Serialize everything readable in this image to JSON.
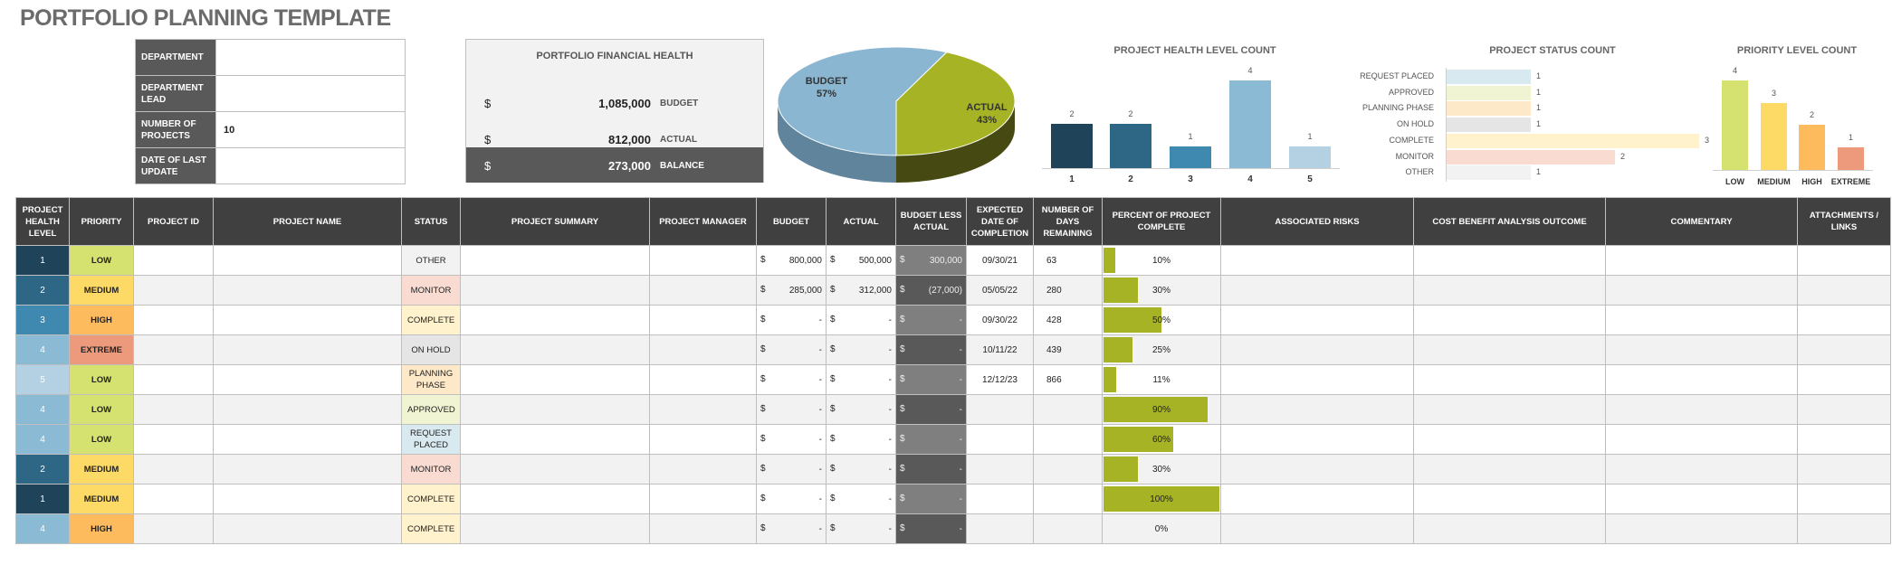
{
  "title": "PORTFOLIO PLANNING TEMPLATE",
  "info": [
    {
      "label": "DEPARTMENT",
      "value": ""
    },
    {
      "label": "DEPARTMENT LEAD",
      "value": ""
    },
    {
      "label": "NUMBER OF PROJECTS",
      "value": "10"
    },
    {
      "label": "DATE OF LAST UPDATE",
      "value": ""
    }
  ],
  "financial": {
    "title": "PORTFOLIO FINANCIAL HEALTH",
    "currency": "$",
    "rows": [
      {
        "value": "1,085,000",
        "label": "BUDGET"
      },
      {
        "value": "812,000",
        "label": "ACTUAL"
      },
      {
        "value": "273,000",
        "label": "BALANCE"
      }
    ]
  },
  "chart_data": [
    {
      "type": "pie",
      "slices": [
        {
          "name": "BUDGET",
          "pct_label": "57%",
          "value": 57
        },
        {
          "name": "ACTUAL",
          "pct_label": "43%",
          "value": 43
        }
      ],
      "colors": [
        "#8ab6d1",
        "#a5b324"
      ]
    },
    {
      "type": "bar",
      "title": "PROJECT HEALTH LEVEL COUNT",
      "categories": [
        "1",
        "2",
        "3",
        "4",
        "5"
      ],
      "values": [
        2,
        2,
        1,
        4,
        1
      ],
      "colors": [
        "#1f4358",
        "#2e6685",
        "#3f88b0",
        "#8bbad5",
        "#b3d1e2"
      ]
    },
    {
      "type": "bar",
      "orientation": "horizontal",
      "title": "PROJECT STATUS COUNT",
      "categories": [
        "REQUEST PLACED",
        "APPROVED",
        "PLANNING PHASE",
        "ON HOLD",
        "COMPLETE",
        "MONITOR",
        "OTHER"
      ],
      "values": [
        1,
        1,
        1,
        1,
        3,
        2,
        1
      ],
      "colors": [
        "#d9e9f0",
        "#f0f4d2",
        "#fde9c8",
        "#e5e5e5",
        "#fff2cc",
        "#fadbd2",
        "#f2f2f2"
      ]
    },
    {
      "type": "bar",
      "title": "PRIORITY LEVEL COUNT",
      "categories": [
        "LOW",
        "MEDIUM",
        "HIGH",
        "EXTREME"
      ],
      "values": [
        4,
        3,
        2,
        1
      ],
      "colors": [
        "#d5e26f",
        "#fdd966",
        "#fdbb5e",
        "#ec9a7b"
      ]
    }
  ],
  "table": {
    "headers": [
      "PROJECT HEALTH LEVEL",
      "PRIORITY",
      "PROJECT ID",
      "PROJECT NAME",
      "STATUS",
      "PROJECT SUMMARY",
      "PROJECT MANAGER",
      "BUDGET",
      "ACTUAL",
      "BUDGET LESS ACTUAL",
      "EXPECTED DATE OF COMPLETION",
      "NUMBER OF DAYS REMAINING",
      "PERCENT OF PROJECT COMPLETE",
      "ASSOCIATED RISKS",
      "COST BENEFIT ANALYSIS OUTCOME",
      "COMMENTARY",
      "ATTACHMENTS / LINKS"
    ],
    "currency": "$",
    "health_colors": {
      "1": "#1f4358",
      "2": "#2e6685",
      "3": "#3f88b0",
      "4": "#8bbad5",
      "5": "#b3d1e2"
    },
    "priority_colors": {
      "LOW": "#d5e26f",
      "MEDIUM": "#fdd966",
      "HIGH": "#fdbb5e",
      "EXTREME": "#ec9a7b"
    },
    "status_colors": {
      "OTHER": "#f2f2f2",
      "MONITOR": "#fadbd2",
      "COMPLETE": "#fff2cc",
      "ON HOLD": "#e5e5e5",
      "PLANNING PHASE": "#fde9c8",
      "APPROVED": "#f0f4d2",
      "REQUEST PLACED": "#d9e9f0"
    },
    "progress_color": "#a5b324",
    "rows": [
      {
        "health": "1",
        "priority": "LOW",
        "id": "",
        "name": "",
        "status": "OTHER",
        "summary": "",
        "manager": "",
        "budget": "800,000",
        "actual": "500,000",
        "diff": "300,000",
        "date": "09/30/21",
        "days": "63",
        "pct": 10,
        "pct_label": "10%",
        "risks": "",
        "cba": "",
        "commentary": "",
        "links": ""
      },
      {
        "health": "2",
        "priority": "MEDIUM",
        "id": "",
        "name": "",
        "status": "MONITOR",
        "summary": "",
        "manager": "",
        "budget": "285,000",
        "actual": "312,000",
        "diff": "(27,000)",
        "date": "05/05/22",
        "days": "280",
        "pct": 30,
        "pct_label": "30%",
        "risks": "",
        "cba": "",
        "commentary": "",
        "links": ""
      },
      {
        "health": "3",
        "priority": "HIGH",
        "id": "",
        "name": "",
        "status": "COMPLETE",
        "summary": "",
        "manager": "",
        "budget": "-",
        "actual": "-",
        "diff": "-",
        "date": "09/30/22",
        "days": "428",
        "pct": 50,
        "pct_label": "50%",
        "risks": "",
        "cba": "",
        "commentary": "",
        "links": ""
      },
      {
        "health": "4",
        "priority": "EXTREME",
        "id": "",
        "name": "",
        "status": "ON HOLD",
        "summary": "",
        "manager": "",
        "budget": "-",
        "actual": "-",
        "diff": "-",
        "date": "10/11/22",
        "days": "439",
        "pct": 25,
        "pct_label": "25%",
        "risks": "",
        "cba": "",
        "commentary": "",
        "links": ""
      },
      {
        "health": "5",
        "priority": "LOW",
        "id": "",
        "name": "",
        "status": "PLANNING PHASE",
        "summary": "",
        "manager": "",
        "budget": "-",
        "actual": "-",
        "diff": "-",
        "date": "12/12/23",
        "days": "866",
        "pct": 11,
        "pct_label": "11%",
        "risks": "",
        "cba": "",
        "commentary": "",
        "links": ""
      },
      {
        "health": "4",
        "priority": "LOW",
        "id": "",
        "name": "",
        "status": "APPROVED",
        "summary": "",
        "manager": "",
        "budget": "-",
        "actual": "-",
        "diff": "-",
        "date": "",
        "days": "",
        "pct": 90,
        "pct_label": "90%",
        "risks": "",
        "cba": "",
        "commentary": "",
        "links": ""
      },
      {
        "health": "4",
        "priority": "LOW",
        "id": "",
        "name": "",
        "status": "REQUEST PLACED",
        "summary": "",
        "manager": "",
        "budget": "-",
        "actual": "-",
        "diff": "-",
        "date": "",
        "days": "",
        "pct": 60,
        "pct_label": "60%",
        "risks": "",
        "cba": "",
        "commentary": "",
        "links": ""
      },
      {
        "health": "2",
        "priority": "MEDIUM",
        "id": "",
        "name": "",
        "status": "MONITOR",
        "summary": "",
        "manager": "",
        "budget": "-",
        "actual": "-",
        "diff": "-",
        "date": "",
        "days": "",
        "pct": 30,
        "pct_label": "30%",
        "risks": "",
        "cba": "",
        "commentary": "",
        "links": ""
      },
      {
        "health": "1",
        "priority": "MEDIUM",
        "id": "",
        "name": "",
        "status": "COMPLETE",
        "summary": "",
        "manager": "",
        "budget": "-",
        "actual": "-",
        "diff": "-",
        "date": "",
        "days": "",
        "pct": 100,
        "pct_label": "100%",
        "risks": "",
        "cba": "",
        "commentary": "",
        "links": ""
      },
      {
        "health": "4",
        "priority": "HIGH",
        "id": "",
        "name": "",
        "status": "COMPLETE",
        "summary": "",
        "manager": "",
        "budget": "-",
        "actual": "-",
        "diff": "-",
        "date": "",
        "days": "",
        "pct": 0,
        "pct_label": "0%",
        "risks": "",
        "cba": "",
        "commentary": "",
        "links": ""
      }
    ]
  }
}
